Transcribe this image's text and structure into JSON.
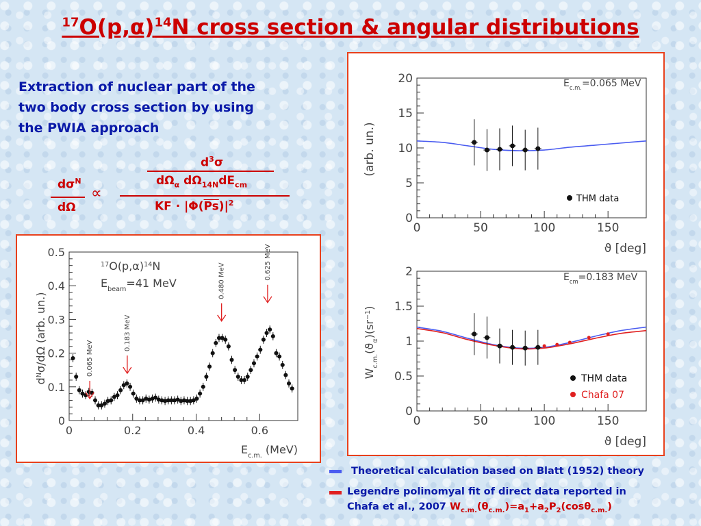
{
  "title": {
    "mass_a": "17",
    "part1": "O(p,α)",
    "mass_b": "14",
    "part2": "N cross section & angular distributions"
  },
  "intro_text": [
    "Extraction of nuclear part of the",
    "two body cross section  by using",
    "the PWIA approach"
  ],
  "formula": {
    "lhs_num": "dσ",
    "lhs_num_sup": "N",
    "lhs_den": "dΩ",
    "proportional": "∝",
    "rhs_num_top": "d",
    "rhs_num_top_sup": "3",
    "rhs_num_top_sym": "σ",
    "rhs_num_bot": "dΩ",
    "rhs_num_bot_sub1": "α",
    "rhs_num_bot_mid": " dΩ",
    "rhs_num_bot_sub2": "14N",
    "rhs_num_bot_end": "dE",
    "rhs_num_bot_sub3": "cm",
    "rhs_den_a": "KF · |Φ(",
    "rhs_den_b": "Ps",
    "rhs_den_c": ")|",
    "rhs_den_sup": "2"
  },
  "colors": {
    "title": "#cc0000",
    "text_blue": "#0a1aa8",
    "panel_border": "#e8401c",
    "theory_blue": "#4a5cf0",
    "fit_red": "#e02020"
  },
  "excitation_chart": {
    "chart_data": {
      "type": "scatter",
      "ylabel_a": "d",
      "ylabel_sup": "N",
      "ylabel_b": "σ/dΩ (arb. un.)",
      "xlabel_a": "E",
      "xlabel_sub": "c.m.",
      "xlabel_b": " (MeV)",
      "xlim": [
        0,
        0.72
      ],
      "ylim": [
        0,
        0.5
      ],
      "xticks": [
        "0",
        "0.2",
        "0.4",
        "0.6"
      ],
      "xtick_values": [
        0,
        0.2,
        0.4,
        0.6
      ],
      "yticks": [
        "0",
        "0.1",
        "0.2",
        "0.3",
        "0.4",
        "0.5"
      ],
      "ytick_values": [
        0,
        0.1,
        0.2,
        0.3,
        0.4,
        0.5
      ],
      "reaction_a": "17",
      "reaction_b": "O(p,α)",
      "reaction_c": "14",
      "reaction_d": "N",
      "beam_a": "E",
      "beam_sub": "beam",
      "beam_b": "=41 MeV",
      "annotations": [
        {
          "label": "0.065 MeV",
          "x": 0.065
        },
        {
          "label": "0.183 MeV",
          "x": 0.183
        },
        {
          "label": "0.480 MeV",
          "x": 0.48
        },
        {
          "label": "0.625 MeV",
          "x": 0.625
        }
      ],
      "points": [
        [
          0.012,
          0.185
        ],
        [
          0.022,
          0.13
        ],
        [
          0.032,
          0.09
        ],
        [
          0.042,
          0.08
        ],
        [
          0.052,
          0.075
        ],
        [
          0.062,
          0.085
        ],
        [
          0.072,
          0.082
        ],
        [
          0.082,
          0.06
        ],
        [
          0.092,
          0.045
        ],
        [
          0.102,
          0.045
        ],
        [
          0.112,
          0.05
        ],
        [
          0.122,
          0.058
        ],
        [
          0.132,
          0.06
        ],
        [
          0.142,
          0.07
        ],
        [
          0.152,
          0.075
        ],
        [
          0.162,
          0.09
        ],
        [
          0.172,
          0.105
        ],
        [
          0.182,
          0.11
        ],
        [
          0.192,
          0.1
        ],
        [
          0.202,
          0.08
        ],
        [
          0.212,
          0.065
        ],
        [
          0.222,
          0.06
        ],
        [
          0.232,
          0.06
        ],
        [
          0.242,
          0.065
        ],
        [
          0.252,
          0.062
        ],
        [
          0.262,
          0.065
        ],
        [
          0.272,
          0.068
        ],
        [
          0.282,
          0.062
        ],
        [
          0.292,
          0.06
        ],
        [
          0.302,
          0.058
        ],
        [
          0.312,
          0.06
        ],
        [
          0.322,
          0.06
        ],
        [
          0.332,
          0.06
        ],
        [
          0.342,
          0.062
        ],
        [
          0.352,
          0.058
        ],
        [
          0.362,
          0.06
        ],
        [
          0.372,
          0.058
        ],
        [
          0.382,
          0.058
        ],
        [
          0.392,
          0.06
        ],
        [
          0.402,
          0.065
        ],
        [
          0.412,
          0.08
        ],
        [
          0.422,
          0.1
        ],
        [
          0.432,
          0.13
        ],
        [
          0.442,
          0.16
        ],
        [
          0.452,
          0.2
        ],
        [
          0.462,
          0.23
        ],
        [
          0.472,
          0.245
        ],
        [
          0.482,
          0.245
        ],
        [
          0.492,
          0.24
        ],
        [
          0.502,
          0.22
        ],
        [
          0.512,
          0.18
        ],
        [
          0.522,
          0.15
        ],
        [
          0.532,
          0.13
        ],
        [
          0.542,
          0.12
        ],
        [
          0.552,
          0.12
        ],
        [
          0.562,
          0.13
        ],
        [
          0.572,
          0.15
        ],
        [
          0.582,
          0.17
        ],
        [
          0.592,
          0.19
        ],
        [
          0.602,
          0.21
        ],
        [
          0.612,
          0.24
        ],
        [
          0.622,
          0.26
        ],
        [
          0.632,
          0.27
        ],
        [
          0.642,
          0.25
        ],
        [
          0.652,
          0.2
        ],
        [
          0.662,
          0.19
        ],
        [
          0.672,
          0.165
        ],
        [
          0.682,
          0.135
        ],
        [
          0.692,
          0.11
        ],
        [
          0.702,
          0.095
        ]
      ]
    }
  },
  "angular_top": {
    "chart_data": {
      "type": "scatter",
      "ylabel": "(arb. un.)",
      "xlabel": "ϑ [deg]",
      "xlim": [
        0,
        180
      ],
      "ylim": [
        0,
        20
      ],
      "xticks": [
        "0",
        "50",
        "100",
        "150"
      ],
      "xtick_values": [
        0,
        50,
        100,
        150
      ],
      "yticks": [
        "0",
        "5",
        "10",
        "15",
        "20"
      ],
      "ytick_values": [
        0,
        5,
        10,
        15,
        20
      ],
      "energy_a": "E",
      "energy_sub": "c.m.",
      "energy_b": "=0.065 MeV",
      "legend": [
        "THM data"
      ],
      "thm_points": [
        [
          45,
          10.8,
          3.3
        ],
        [
          55,
          9.7,
          3
        ],
        [
          65,
          9.8,
          3
        ],
        [
          75,
          10.3,
          2.9
        ],
        [
          85,
          9.7,
          2.9
        ],
        [
          95,
          9.9,
          3
        ]
      ],
      "theory_curve": {
        "name": "",
        "x": [
          0,
          20,
          40,
          60,
          80,
          100,
          120,
          140,
          160,
          180
        ],
        "y": [
          11,
          10.8,
          10.3,
          9.8,
          9.6,
          9.7,
          10.1,
          10.4,
          10.7,
          11
        ]
      }
    }
  },
  "angular_bottom": {
    "chart_data": {
      "type": "scatter",
      "ylabel_a": "W",
      "ylabel_sub": "c.m.",
      "ylabel_b": "(ϑ",
      "ylabel_sub2": "α",
      "ylabel_c": ")(sr",
      "ylabel_sup": "−1",
      "ylabel_d": ")",
      "xlabel": "ϑ [deg]",
      "xlim": [
        0,
        180
      ],
      "ylim": [
        0,
        2
      ],
      "xticks": [
        "0",
        "50",
        "100",
        "150"
      ],
      "xtick_values": [
        0,
        50,
        100,
        150
      ],
      "yticks": [
        "0",
        "0.5",
        "1",
        "1.5",
        "2"
      ],
      "ytick_values": [
        0,
        0.5,
        1,
        1.5,
        2
      ],
      "energy_a": "E",
      "energy_sub": "cm",
      "energy_b": "=0.183 MeV",
      "legend": [
        "THM data",
        "Chafa 07"
      ],
      "thm_points": [
        [
          45,
          1.1,
          0.3
        ],
        [
          55,
          1.05,
          0.3
        ],
        [
          65,
          0.93,
          0.25
        ],
        [
          75,
          0.91,
          0.25
        ],
        [
          85,
          0.9,
          0.25
        ],
        [
          95,
          0.91,
          0.25
        ]
      ],
      "chafa_points": [
        [
          100,
          0.93
        ],
        [
          110,
          0.95
        ],
        [
          120,
          0.98
        ],
        [
          135,
          1.05
        ],
        [
          150,
          1.1
        ]
      ],
      "theory_curve": {
        "name": "",
        "x": [
          0,
          20,
          40,
          60,
          80,
          100,
          120,
          140,
          160,
          180
        ],
        "y": [
          1.2,
          1.14,
          1.04,
          0.95,
          0.9,
          0.91,
          0.98,
          1.07,
          1.15,
          1.2
        ]
      },
      "fit_curve": {
        "name": "",
        "x": [
          0,
          20,
          40,
          60,
          80,
          100,
          120,
          140,
          160,
          180
        ],
        "y": [
          1.18,
          1.12,
          1.02,
          0.94,
          0.89,
          0.9,
          0.96,
          1.04,
          1.11,
          1.15
        ]
      }
    }
  },
  "bottom_legend": {
    "theory": "Theoretical calculation based  on Blatt (1952) theory",
    "fit_line1": "Legendre polinomyal fit of direct data reported in",
    "fit_line2_a": "Chafa et al., 2007 ",
    "fit_formula": {
      "a": "W",
      "sub1": "c.m.",
      "b": "(θ",
      "sub2": "c.m.",
      "c": ")=a",
      "sub3": "1",
      "d": "+a",
      "sub4": "2",
      "e": "P",
      "sub5": "2",
      "f": "(cosθ",
      "sub6": "c.m.",
      "g": ")"
    }
  }
}
